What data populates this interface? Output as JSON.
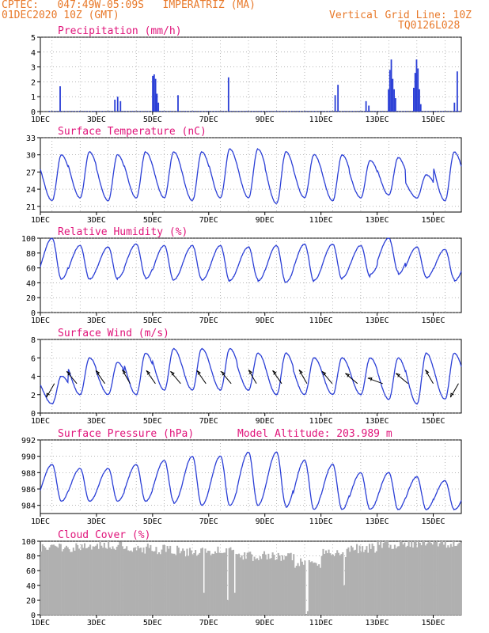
{
  "header": {
    "line1": "CPTEC:   047:49W-05:09S   IMPERATRIZ (MA)",
    "line2": "01DEC2020 10Z (GMT)",
    "right1": "Vertical Grid Line: 10Z",
    "right2": "TQ0126L028"
  },
  "colors": {
    "header": "#e8792a",
    "title": "#e0147a",
    "series": "#2b3fd6",
    "cloud": "#b0b0b0"
  },
  "chart_data": [
    {
      "type": "bar",
      "title": "Precipitation (mm/h)",
      "ylim": [
        0,
        5
      ],
      "yticks": [
        0,
        1,
        2,
        3,
        4,
        5
      ],
      "x_start": 0,
      "x_end": 15,
      "x_unit": "days from 01DEC2020 00Z",
      "xtick_labels": [
        "1DEC",
        "3DEC",
        "5DEC",
        "7DEC",
        "9DEC",
        "11DEC",
        "13DEC",
        "15DEC"
      ],
      "events": [
        {
          "t": 0.7,
          "v": 1.7
        },
        {
          "t": 2.65,
          "v": 0.8
        },
        {
          "t": 2.75,
          "v": 1.0
        },
        {
          "t": 2.85,
          "v": 0.7
        },
        {
          "t": 4.0,
          "v": 2.4
        },
        {
          "t": 4.05,
          "v": 2.5
        },
        {
          "t": 4.1,
          "v": 2.2
        },
        {
          "t": 4.15,
          "v": 1.2
        },
        {
          "t": 4.2,
          "v": 0.6
        },
        {
          "t": 4.9,
          "v": 1.1
        },
        {
          "t": 6.7,
          "v": 2.3
        },
        {
          "t": 10.5,
          "v": 1.1
        },
        {
          "t": 10.6,
          "v": 1.8
        },
        {
          "t": 11.6,
          "v": 0.7
        },
        {
          "t": 11.7,
          "v": 0.4
        },
        {
          "t": 12.4,
          "v": 1.5
        },
        {
          "t": 12.45,
          "v": 2.8
        },
        {
          "t": 12.5,
          "v": 3.5
        },
        {
          "t": 12.55,
          "v": 2.2
        },
        {
          "t": 12.6,
          "v": 1.5
        },
        {
          "t": 12.65,
          "v": 0.9
        },
        {
          "t": 13.3,
          "v": 1.6
        },
        {
          "t": 13.35,
          "v": 2.6
        },
        {
          "t": 13.4,
          "v": 3.5
        },
        {
          "t": 13.45,
          "v": 2.9
        },
        {
          "t": 13.5,
          "v": 1.5
        },
        {
          "t": 13.55,
          "v": 0.5
        },
        {
          "t": 14.75,
          "v": 0.6
        },
        {
          "t": 14.85,
          "v": 2.7
        }
      ]
    },
    {
      "type": "line",
      "title": "Surface Temperature (nC)",
      "ylim": [
        20,
        33
      ],
      "yticks": [
        21,
        24,
        27,
        30,
        33
      ],
      "x_start": 0,
      "x_end": 15,
      "daily": [
        {
          "min": 22.0,
          "max": 30.0
        },
        {
          "min": 22.5,
          "max": 30.5
        },
        {
          "min": 22.0,
          "max": 30.0
        },
        {
          "min": 22.5,
          "max": 30.5
        },
        {
          "min": 22.5,
          "max": 30.5
        },
        {
          "min": 22.0,
          "max": 30.5
        },
        {
          "min": 22.5,
          "max": 31.0
        },
        {
          "min": 22.5,
          "max": 31.0
        },
        {
          "min": 21.5,
          "max": 30.5
        },
        {
          "min": 22.5,
          "max": 30.0
        },
        {
          "min": 22.0,
          "max": 30.0
        },
        {
          "min": 22.5,
          "max": 29.0
        },
        {
          "min": 23.0,
          "max": 29.5
        },
        {
          "min": 22.5,
          "max": 26.5
        },
        {
          "min": 22.0,
          "max": 30.5
        },
        {
          "min": 22.5,
          "max": 31.0
        }
      ]
    },
    {
      "type": "line",
      "title": "Relative Humidity (%)",
      "ylim": [
        0,
        100
      ],
      "yticks": [
        0,
        20,
        40,
        60,
        80,
        100
      ],
      "x_start": 0,
      "x_end": 15,
      "daily": [
        {
          "min": 45,
          "max": 100
        },
        {
          "min": 45,
          "max": 90
        },
        {
          "min": 45,
          "max": 88
        },
        {
          "min": 48,
          "max": 92
        },
        {
          "min": 43,
          "max": 90
        },
        {
          "min": 45,
          "max": 90
        },
        {
          "min": 42,
          "max": 90
        },
        {
          "min": 45,
          "max": 88
        },
        {
          "min": 40,
          "max": 90
        },
        {
          "min": 42,
          "max": 92
        },
        {
          "min": 45,
          "max": 92
        },
        {
          "min": 48,
          "max": 90
        },
        {
          "min": 55,
          "max": 100
        },
        {
          "min": 48,
          "max": 88
        },
        {
          "min": 45,
          "max": 85
        },
        {
          "min": 40,
          "max": 90
        }
      ]
    },
    {
      "type": "line",
      "title": "Surface Wind (m/s)",
      "ylim": [
        0,
        8
      ],
      "yticks": [
        0,
        2,
        4,
        6,
        8
      ],
      "x_start": 0,
      "x_end": 15,
      "daily": [
        {
          "min": 1.0,
          "max": 4.0
        },
        {
          "min": 2.0,
          "max": 6.0
        },
        {
          "min": 2.0,
          "max": 5.5
        },
        {
          "min": 2.0,
          "max": 6.5
        },
        {
          "min": 2.5,
          "max": 7.0
        },
        {
          "min": 2.5,
          "max": 7.0
        },
        {
          "min": 2.5,
          "max": 7.0
        },
        {
          "min": 2.5,
          "max": 6.5
        },
        {
          "min": 2.0,
          "max": 6.5
        },
        {
          "min": 2.0,
          "max": 6.0
        },
        {
          "min": 2.0,
          "max": 6.0
        },
        {
          "min": 2.0,
          "max": 6.0
        },
        {
          "min": 1.5,
          "max": 6.0
        },
        {
          "min": 1.0,
          "max": 6.5
        },
        {
          "min": 1.5,
          "max": 6.5
        },
        {
          "min": 2.0,
          "max": 5.0
        }
      ],
      "vectors": [
        {
          "t": 0.5,
          "dir": 330
        },
        {
          "t": 1.3,
          "dir": 220
        },
        {
          "t": 2.3,
          "dir": 215
        },
        {
          "t": 3.2,
          "dir": 210
        },
        {
          "t": 4.1,
          "dir": 215
        },
        {
          "t": 5.0,
          "dir": 220
        },
        {
          "t": 5.9,
          "dir": 215
        },
        {
          "t": 6.8,
          "dir": 220
        },
        {
          "t": 7.7,
          "dir": 210
        },
        {
          "t": 8.6,
          "dir": 215
        },
        {
          "t": 9.5,
          "dir": 210
        },
        {
          "t": 10.4,
          "dir": 220
        },
        {
          "t": 11.3,
          "dir": 230
        },
        {
          "t": 12.2,
          "dir": 250
        },
        {
          "t": 13.1,
          "dir": 230
        },
        {
          "t": 14.0,
          "dir": 210
        },
        {
          "t": 14.9,
          "dir": 330
        }
      ]
    },
    {
      "type": "line",
      "title": "Surface Pressure (hPa)",
      "annotation": "Model Altitude: 203.989 m",
      "ylim": [
        983,
        992
      ],
      "yticks": [
        984,
        986,
        988,
        990,
        992
      ],
      "x_start": 0,
      "x_end": 15,
      "daily": [
        {
          "min": 984.5,
          "max": 989.0
        },
        {
          "min": 984.5,
          "max": 988.5
        },
        {
          "min": 984.5,
          "max": 988.5
        },
        {
          "min": 984.5,
          "max": 989.0
        },
        {
          "min": 984.5,
          "max": 989.5
        },
        {
          "min": 984.0,
          "max": 990.0
        },
        {
          "min": 984.0,
          "max": 990.0
        },
        {
          "min": 984.0,
          "max": 990.5
        },
        {
          "min": 984.0,
          "max": 990.5
        },
        {
          "min": 983.5,
          "max": 989.5
        },
        {
          "min": 983.5,
          "max": 989.0
        },
        {
          "min": 983.5,
          "max": 988.0
        },
        {
          "min": 983.5,
          "max": 988.0
        },
        {
          "min": 983.5,
          "max": 987.5
        },
        {
          "min": 983.5,
          "max": 987.0
        },
        {
          "min": 983.5,
          "max": 986.5
        }
      ]
    },
    {
      "type": "area",
      "title": "Cloud Cover (%)",
      "ylim": [
        0,
        100
      ],
      "yticks": [
        0,
        20,
        40,
        60,
        80,
        100
      ],
      "x_start": 0,
      "x_end": 15,
      "daily_mean": [
        93,
        92,
        95,
        90,
        88,
        85,
        88,
        80,
        78,
        70,
        85,
        90,
        96,
        97,
        98,
        97
      ],
      "gaps": [
        {
          "t": 9.45,
          "v": 0
        },
        {
          "t": 9.5,
          "v": 5
        },
        {
          "t": 6.65,
          "v": 20
        },
        {
          "t": 6.9,
          "v": 30
        },
        {
          "t": 5.8,
          "v": 30
        },
        {
          "t": 10.8,
          "v": 40
        }
      ]
    }
  ]
}
